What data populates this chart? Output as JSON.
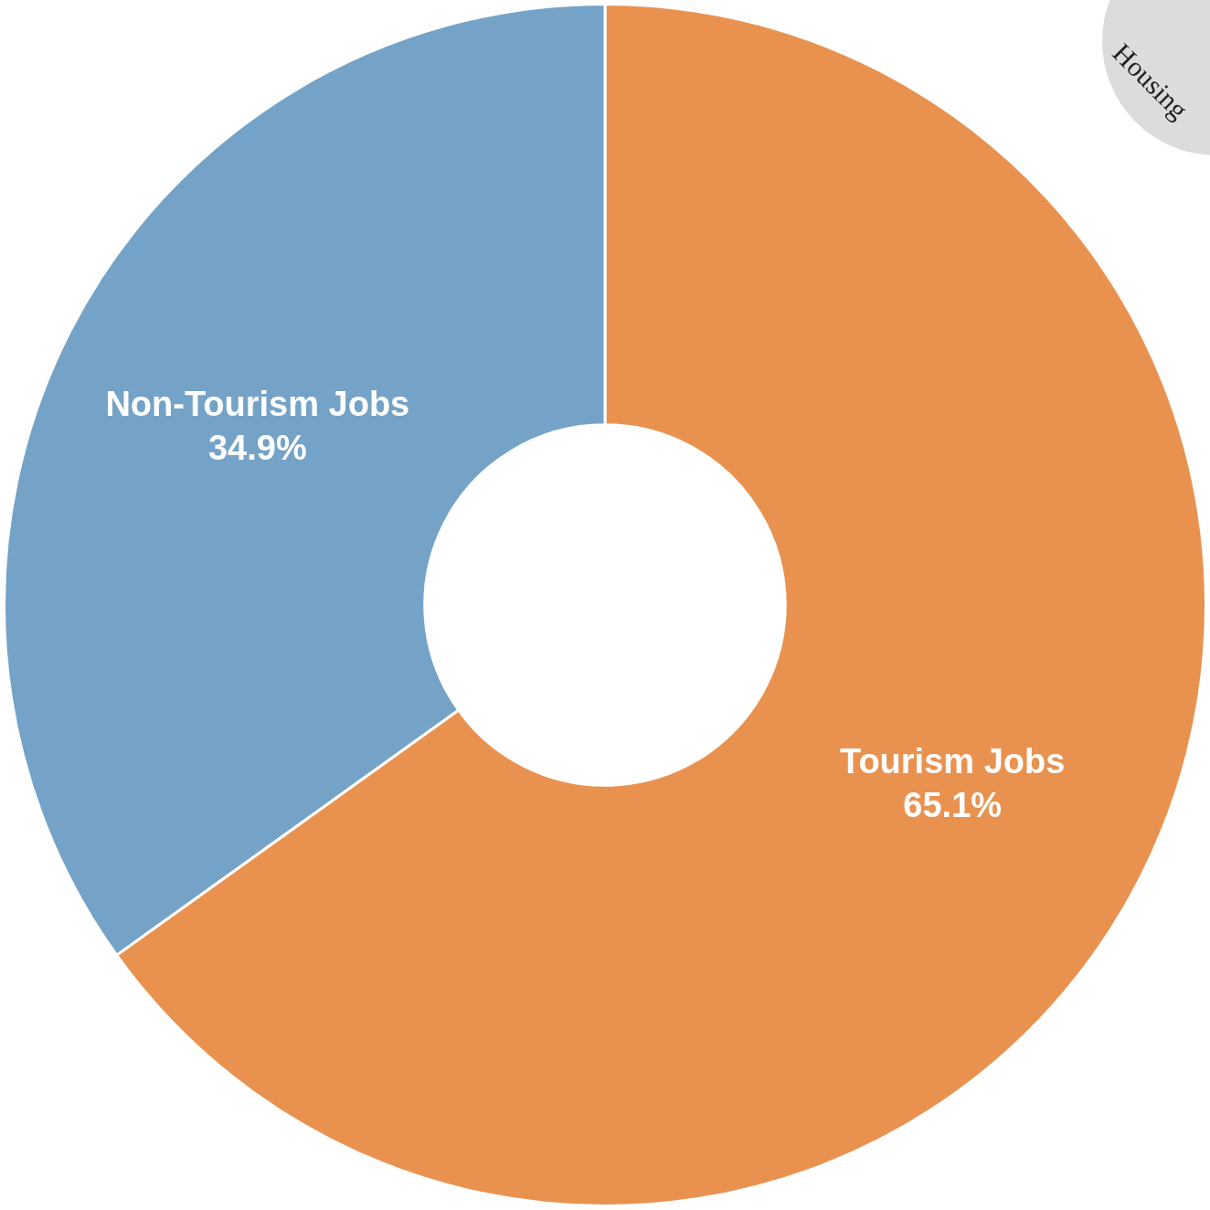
{
  "chart_data": {
    "type": "donut",
    "categories": [
      "Tourism Jobs",
      "Non-Tourism Jobs"
    ],
    "values": [
      65.1,
      34.9
    ],
    "colors": [
      "#e9924f",
      "#74a3c7"
    ],
    "value_labels": [
      "65.1%",
      "34.9%"
    ],
    "legend": false,
    "annotations": [
      "Housing"
    ]
  }
}
